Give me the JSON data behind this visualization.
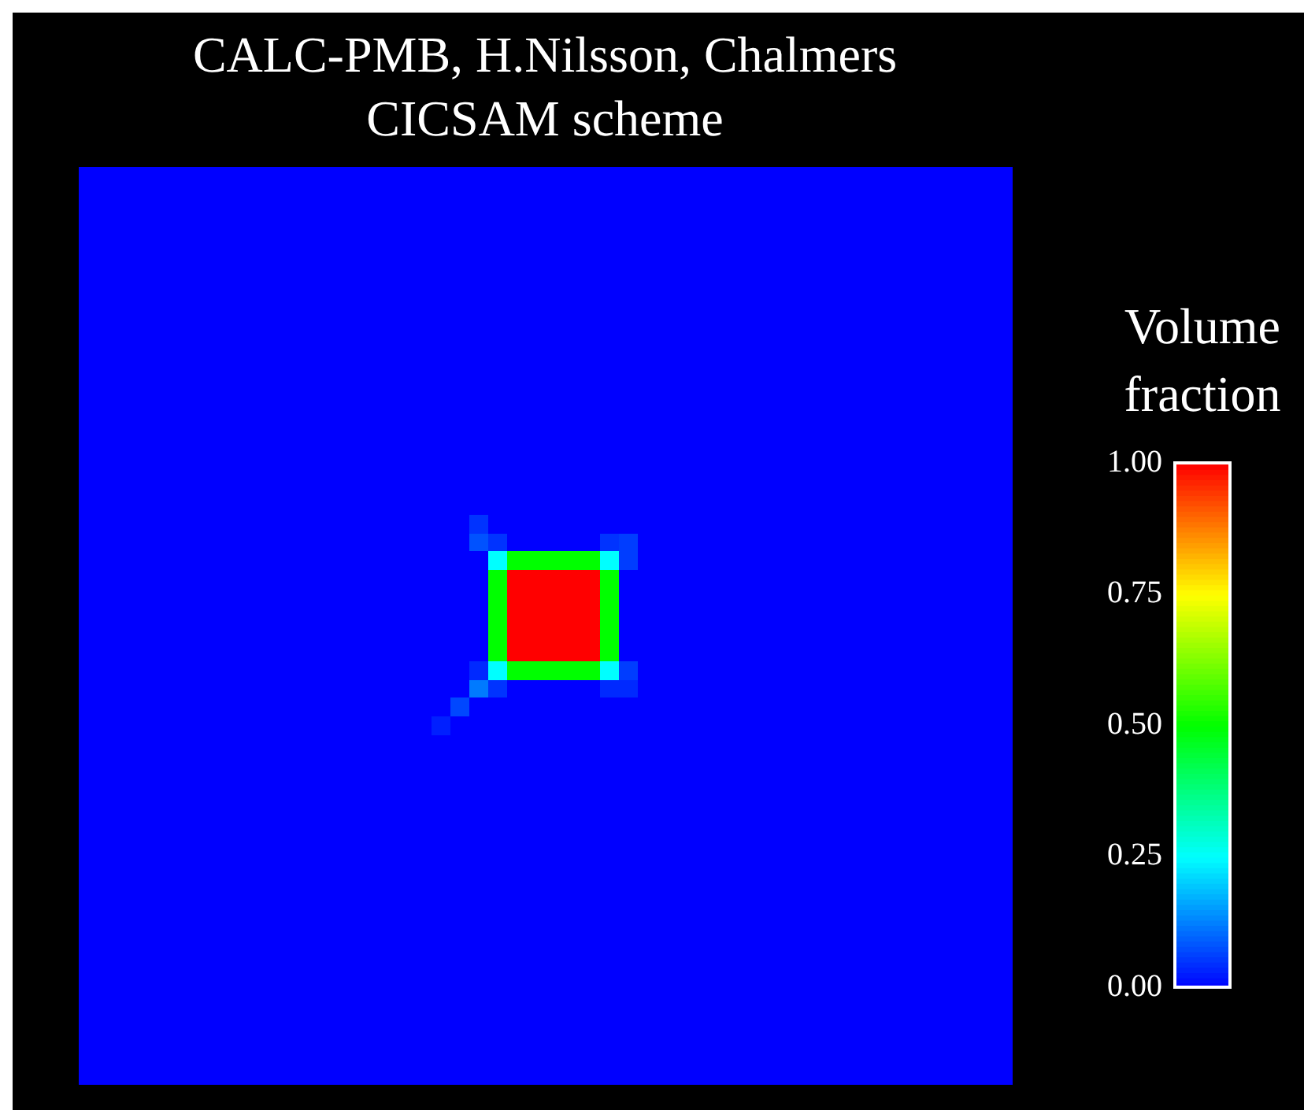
{
  "chart_data": {
    "type": "heatmap",
    "title": "CALC-PMB, H.Nilsson, Chalmers",
    "subtitle": "CICSAM scheme",
    "clabel": "Volume fraction",
    "tick_labels": false,
    "categories": [
      null,
      null,
      null,
      null,
      null,
      null,
      null,
      null,
      null,
      null,
      null,
      null,
      null,
      null,
      null,
      null,
      null,
      null,
      null,
      null,
      null,
      null,
      null,
      null,
      null,
      null,
      null,
      null,
      null,
      null,
      null,
      null,
      null,
      null,
      null,
      null,
      null,
      null,
      null,
      null,
      null,
      null,
      null,
      null,
      null,
      null,
      null,
      null,
      null,
      null
    ],
    "y_categories": [
      null,
      null,
      null,
      null,
      null,
      null,
      null,
      null,
      null,
      null,
      null,
      null,
      null,
      null,
      null,
      null,
      null,
      null,
      null,
      null,
      null,
      null,
      null,
      null,
      null,
      null,
      null,
      null,
      null,
      null,
      null,
      null,
      null,
      null,
      null,
      null,
      null,
      null,
      null,
      null,
      null,
      null,
      null,
      null,
      null,
      null,
      null,
      null,
      null,
      null
    ],
    "clim": [
      0,
      1
    ],
    "cticks": [
      {
        "value": 0,
        "label": "0.00"
      },
      {
        "value": 0.25,
        "label": "0.25"
      },
      {
        "value": 0.5,
        "label": "0.50"
      },
      {
        "value": 0.75,
        "label": "0.75"
      },
      {
        "value": 1,
        "label": "1.00"
      }
    ],
    "cells": [
      [
        0,
        0,
        0,
        0,
        0,
        0,
        0,
        0,
        0,
        0,
        0,
        0,
        0,
        0,
        0,
        0,
        0,
        0,
        0,
        0,
        0,
        0,
        0,
        0,
        0,
        0,
        0,
        0,
        0,
        0,
        0,
        0,
        0,
        0,
        0,
        0,
        0,
        0,
        0,
        0,
        0,
        0,
        0,
        0,
        0,
        0,
        0,
        0,
        0,
        0
      ],
      [
        0,
        0,
        0,
        0,
        0,
        0,
        0,
        0,
        0,
        0,
        0,
        0,
        0,
        0,
        0,
        0,
        0,
        0,
        0,
        0,
        0,
        0,
        0,
        0,
        0,
        0,
        0,
        0,
        0,
        0,
        0,
        0,
        0,
        0,
        0,
        0,
        0,
        0,
        0,
        0,
        0,
        0,
        0,
        0,
        0,
        0,
        0,
        0,
        0,
        0
      ],
      [
        0,
        0,
        0,
        0,
        0,
        0,
        0,
        0,
        0,
        0,
        0,
        0,
        0,
        0,
        0,
        0,
        0,
        0,
        0,
        0,
        0,
        0,
        0,
        0,
        0,
        0,
        0,
        0,
        0,
        0,
        0,
        0,
        0,
        0,
        0,
        0,
        0,
        0,
        0,
        0,
        0,
        0,
        0,
        0,
        0,
        0,
        0,
        0,
        0,
        0
      ],
      [
        0,
        0,
        0,
        0,
        0,
        0,
        0,
        0,
        0,
        0,
        0,
        0,
        0,
        0,
        0,
        0,
        0,
        0,
        0,
        0,
        0,
        0,
        0,
        0,
        0,
        0,
        0,
        0,
        0,
        0,
        0,
        0,
        0,
        0,
        0,
        0,
        0,
        0,
        0,
        0,
        0,
        0,
        0,
        0,
        0,
        0,
        0,
        0,
        0,
        0
      ],
      [
        0,
        0,
        0,
        0,
        0,
        0,
        0,
        0,
        0,
        0,
        0,
        0,
        0,
        0,
        0,
        0,
        0,
        0,
        0,
        0,
        0,
        0,
        0,
        0,
        0,
        0,
        0,
        0,
        0,
        0,
        0,
        0,
        0,
        0,
        0,
        0,
        0,
        0,
        0,
        0,
        0,
        0,
        0,
        0,
        0,
        0,
        0,
        0,
        0,
        0
      ],
      [
        0,
        0,
        0,
        0,
        0,
        0,
        0,
        0,
        0,
        0,
        0,
        0,
        0,
        0,
        0,
        0,
        0,
        0,
        0,
        0,
        0,
        0,
        0,
        0,
        0,
        0,
        0,
        0,
        0,
        0,
        0,
        0,
        0,
        0,
        0,
        0,
        0,
        0,
        0,
        0,
        0,
        0,
        0,
        0,
        0,
        0,
        0,
        0,
        0,
        0
      ],
      [
        0,
        0,
        0,
        0,
        0,
        0,
        0,
        0,
        0,
        0,
        0,
        0,
        0,
        0,
        0,
        0,
        0,
        0,
        0,
        0,
        0,
        0,
        0,
        0,
        0,
        0,
        0,
        0,
        0,
        0,
        0,
        0,
        0,
        0,
        0,
        0,
        0,
        0,
        0,
        0,
        0,
        0,
        0,
        0,
        0,
        0,
        0,
        0,
        0,
        0
      ],
      [
        0,
        0,
        0,
        0,
        0,
        0,
        0,
        0,
        0,
        0,
        0,
        0,
        0,
        0,
        0,
        0,
        0,
        0,
        0,
        0,
        0,
        0,
        0,
        0,
        0,
        0,
        0,
        0,
        0,
        0,
        0,
        0,
        0,
        0,
        0,
        0,
        0,
        0,
        0,
        0,
        0,
        0,
        0,
        0,
        0,
        0,
        0,
        0,
        0,
        0
      ],
      [
        0,
        0,
        0,
        0,
        0,
        0,
        0,
        0,
        0,
        0,
        0,
        0,
        0,
        0,
        0,
        0,
        0,
        0,
        0,
        0,
        0,
        0,
        0,
        0,
        0,
        0,
        0,
        0,
        0,
        0,
        0,
        0,
        0,
        0,
        0,
        0,
        0,
        0,
        0,
        0,
        0,
        0,
        0,
        0,
        0,
        0,
        0,
        0,
        0,
        0
      ],
      [
        0,
        0,
        0,
        0,
        0,
        0,
        0,
        0,
        0,
        0,
        0,
        0,
        0,
        0,
        0,
        0,
        0,
        0,
        0,
        0,
        0,
        0,
        0,
        0,
        0,
        0,
        0,
        0,
        0,
        0,
        0,
        0,
        0,
        0,
        0,
        0,
        0,
        0,
        0,
        0,
        0,
        0,
        0,
        0,
        0,
        0,
        0,
        0,
        0,
        0
      ],
      [
        0,
        0,
        0,
        0,
        0,
        0,
        0,
        0,
        0,
        0,
        0,
        0,
        0,
        0,
        0,
        0,
        0,
        0,
        0,
        0,
        0,
        0,
        0,
        0,
        0,
        0,
        0,
        0,
        0,
        0,
        0,
        0,
        0,
        0,
        0,
        0,
        0,
        0,
        0,
        0,
        0,
        0,
        0,
        0,
        0,
        0,
        0,
        0,
        0,
        0
      ],
      [
        0,
        0,
        0,
        0,
        0,
        0,
        0,
        0,
        0,
        0,
        0,
        0,
        0,
        0,
        0,
        0,
        0,
        0,
        0,
        0,
        0,
        0,
        0,
        0,
        0,
        0,
        0,
        0,
        0,
        0,
        0,
        0,
        0,
        0,
        0,
        0,
        0,
        0,
        0,
        0,
        0,
        0,
        0,
        0,
        0,
        0,
        0,
        0,
        0,
        0
      ],
      [
        0,
        0,
        0,
        0,
        0,
        0,
        0,
        0,
        0,
        0,
        0,
        0,
        0,
        0,
        0,
        0,
        0,
        0,
        0,
        0,
        0,
        0,
        0,
        0,
        0,
        0,
        0,
        0,
        0,
        0,
        0,
        0,
        0,
        0,
        0,
        0,
        0,
        0,
        0,
        0,
        0,
        0,
        0,
        0,
        0,
        0,
        0,
        0,
        0,
        0
      ],
      [
        0,
        0,
        0,
        0,
        0,
        0,
        0,
        0,
        0,
        0,
        0,
        0,
        0,
        0,
        0,
        0,
        0,
        0,
        0,
        0,
        0,
        0,
        0,
        0,
        0,
        0,
        0,
        0,
        0,
        0,
        0,
        0,
        0,
        0,
        0,
        0,
        0,
        0,
        0,
        0,
        0,
        0,
        0,
        0,
        0,
        0,
        0,
        0,
        0,
        0
      ],
      [
        0,
        0,
        0,
        0,
        0,
        0,
        0,
        0,
        0,
        0,
        0,
        0,
        0,
        0,
        0,
        0,
        0,
        0,
        0,
        0,
        0,
        0,
        0,
        0,
        0,
        0,
        0,
        0,
        0,
        0,
        0,
        0,
        0,
        0,
        0,
        0,
        0,
        0,
        0,
        0,
        0,
        0,
        0,
        0,
        0,
        0,
        0,
        0,
        0,
        0
      ],
      [
        0,
        0,
        0,
        0,
        0,
        0,
        0,
        0,
        0,
        0,
        0,
        0,
        0,
        0,
        0,
        0,
        0,
        0,
        0,
        0,
        0,
        0,
        0,
        0,
        0,
        0,
        0,
        0,
        0,
        0,
        0,
        0,
        0,
        0,
        0,
        0,
        0,
        0,
        0,
        0,
        0,
        0,
        0,
        0,
        0,
        0,
        0,
        0,
        0,
        0
      ],
      [
        0,
        0,
        0,
        0,
        0,
        0,
        0,
        0,
        0,
        0,
        0,
        0,
        0,
        0,
        0,
        0,
        0,
        0,
        0,
        0,
        0,
        0,
        0,
        0,
        0,
        0,
        0,
        0,
        0,
        0,
        0,
        0,
        0,
        0,
        0,
        0,
        0,
        0,
        0,
        0,
        0,
        0,
        0,
        0,
        0,
        0,
        0,
        0,
        0,
        0
      ],
      [
        0,
        0,
        0,
        0,
        0,
        0,
        0,
        0,
        0,
        0,
        0,
        0,
        0,
        0,
        0,
        0,
        0,
        0,
        0,
        0,
        0,
        0,
        0,
        0,
        0,
        0,
        0,
        0,
        0,
        0,
        0,
        0,
        0,
        0,
        0,
        0,
        0,
        0,
        0,
        0,
        0,
        0,
        0,
        0,
        0,
        0,
        0,
        0,
        0,
        0
      ],
      [
        0,
        0,
        0,
        0,
        0,
        0,
        0,
        0,
        0,
        0,
        0,
        0,
        0,
        0,
        0,
        0,
        0,
        0,
        0,
        0,
        0,
        0,
        0,
        0,
        0,
        0,
        0,
        0,
        0,
        0,
        0,
        0,
        0,
        0,
        0,
        0,
        0,
        0,
        0,
        0,
        0,
        0,
        0,
        0,
        0,
        0,
        0,
        0,
        0,
        0
      ],
      [
        0,
        0,
        0,
        0,
        0,
        0,
        0,
        0,
        0,
        0,
        0,
        0,
        0,
        0,
        0,
        0,
        0,
        0,
        0,
        0,
        0,
        0.05,
        0,
        0,
        0,
        0,
        0,
        0,
        0,
        0,
        0,
        0,
        0,
        0,
        0,
        0,
        0,
        0,
        0,
        0,
        0,
        0,
        0,
        0,
        0,
        0,
        0,
        0,
        0,
        0
      ],
      [
        0,
        0,
        0,
        0,
        0,
        0,
        0,
        0,
        0,
        0,
        0,
        0,
        0,
        0,
        0,
        0,
        0,
        0,
        0,
        0,
        0,
        0.08,
        0.05,
        0,
        0,
        0,
        0,
        0,
        0.05,
        0.06,
        0,
        0,
        0,
        0,
        0,
        0,
        0,
        0,
        0,
        0,
        0,
        0,
        0,
        0,
        0,
        0,
        0,
        0,
        0,
        0
      ],
      [
        0,
        0,
        0,
        0,
        0,
        0,
        0,
        0,
        0,
        0,
        0,
        0,
        0,
        0,
        0,
        0,
        0,
        0,
        0,
        0,
        0,
        0,
        0.25,
        0.5,
        0.5,
        0.5,
        0.5,
        0.5,
        0.25,
        0.06,
        0,
        0,
        0,
        0,
        0,
        0,
        0,
        0,
        0,
        0,
        0,
        0,
        0,
        0,
        0,
        0,
        0,
        0,
        0,
        0
      ],
      [
        0,
        0,
        0,
        0,
        0,
        0,
        0,
        0,
        0,
        0,
        0,
        0,
        0,
        0,
        0,
        0,
        0,
        0,
        0,
        0,
        0,
        0,
        0.5,
        1,
        1,
        1,
        1,
        1,
        0.5,
        0,
        0,
        0,
        0,
        0,
        0,
        0,
        0,
        0,
        0,
        0,
        0,
        0,
        0,
        0,
        0,
        0,
        0,
        0,
        0,
        0
      ],
      [
        0,
        0,
        0,
        0,
        0,
        0,
        0,
        0,
        0,
        0,
        0,
        0,
        0,
        0,
        0,
        0,
        0,
        0,
        0,
        0,
        0,
        0,
        0.5,
        1,
        1,
        1,
        1,
        1,
        0.5,
        0,
        0,
        0,
        0,
        0,
        0,
        0,
        0,
        0,
        0,
        0,
        0,
        0,
        0,
        0,
        0,
        0,
        0,
        0,
        0,
        0
      ],
      [
        0,
        0,
        0,
        0,
        0,
        0,
        0,
        0,
        0,
        0,
        0,
        0,
        0,
        0,
        0,
        0,
        0,
        0,
        0,
        0,
        0,
        0,
        0.5,
        1,
        1,
        1,
        1,
        1,
        0.5,
        0,
        0,
        0,
        0,
        0,
        0,
        0,
        0,
        0,
        0,
        0,
        0,
        0,
        0,
        0,
        0,
        0,
        0,
        0,
        0,
        0
      ],
      [
        0,
        0,
        0,
        0,
        0,
        0,
        0,
        0,
        0,
        0,
        0,
        0,
        0,
        0,
        0,
        0,
        0,
        0,
        0,
        0,
        0,
        0,
        0.5,
        1,
        1,
        1,
        1,
        1,
        0.5,
        0,
        0,
        0,
        0,
        0,
        0,
        0,
        0,
        0,
        0,
        0,
        0,
        0,
        0,
        0,
        0,
        0,
        0,
        0,
        0,
        0
      ],
      [
        0,
        0,
        0,
        0,
        0,
        0,
        0,
        0,
        0,
        0,
        0,
        0,
        0,
        0,
        0,
        0,
        0,
        0,
        0,
        0,
        0,
        0,
        0.5,
        1,
        1,
        1,
        1,
        1,
        0.5,
        0,
        0,
        0,
        0,
        0,
        0,
        0,
        0,
        0,
        0,
        0,
        0,
        0,
        0,
        0,
        0,
        0,
        0,
        0,
        0,
        0
      ],
      [
        0,
        0,
        0,
        0,
        0,
        0,
        0,
        0,
        0,
        0,
        0,
        0,
        0,
        0,
        0,
        0,
        0,
        0,
        0,
        0,
        0,
        0.04,
        0.25,
        0.5,
        0.5,
        0.5,
        0.5,
        0.5,
        0.25,
        0.06,
        0,
        0,
        0,
        0,
        0,
        0,
        0,
        0,
        0,
        0,
        0,
        0,
        0,
        0,
        0,
        0,
        0,
        0,
        0,
        0
      ],
      [
        0,
        0,
        0,
        0,
        0,
        0,
        0,
        0,
        0,
        0,
        0,
        0,
        0,
        0,
        0,
        0,
        0,
        0,
        0,
        0,
        0,
        0.12,
        0.05,
        0,
        0,
        0,
        0,
        0,
        0.04,
        0.04,
        0,
        0,
        0,
        0,
        0,
        0,
        0,
        0,
        0,
        0,
        0,
        0,
        0,
        0,
        0,
        0,
        0,
        0,
        0,
        0
      ],
      [
        0,
        0,
        0,
        0,
        0,
        0,
        0,
        0,
        0,
        0,
        0,
        0,
        0,
        0,
        0,
        0,
        0,
        0,
        0,
        0,
        0.07,
        0,
        0,
        0,
        0,
        0,
        0,
        0,
        0,
        0,
        0,
        0,
        0,
        0,
        0,
        0,
        0,
        0,
        0,
        0,
        0,
        0,
        0,
        0,
        0,
        0,
        0,
        0,
        0,
        0
      ],
      [
        0,
        0,
        0,
        0,
        0,
        0,
        0,
        0,
        0,
        0,
        0,
        0,
        0,
        0,
        0,
        0,
        0,
        0,
        0,
        0.03,
        0,
        0,
        0,
        0,
        0,
        0,
        0,
        0,
        0,
        0,
        0,
        0,
        0,
        0,
        0,
        0,
        0,
        0,
        0,
        0,
        0,
        0,
        0,
        0,
        0,
        0,
        0,
        0,
        0,
        0
      ],
      [
        0,
        0,
        0,
        0,
        0,
        0,
        0,
        0,
        0,
        0,
        0,
        0,
        0,
        0,
        0,
        0,
        0,
        0,
        0,
        0,
        0,
        0,
        0,
        0,
        0,
        0,
        0,
        0,
        0,
        0,
        0,
        0,
        0,
        0,
        0,
        0,
        0,
        0,
        0,
        0,
        0,
        0,
        0,
        0,
        0,
        0,
        0,
        0,
        0,
        0
      ],
      [
        0,
        0,
        0,
        0,
        0,
        0,
        0,
        0,
        0,
        0,
        0,
        0,
        0,
        0,
        0,
        0,
        0,
        0,
        0,
        0,
        0,
        0,
        0,
        0,
        0,
        0,
        0,
        0,
        0,
        0,
        0,
        0,
        0,
        0,
        0,
        0,
        0,
        0,
        0,
        0,
        0,
        0,
        0,
        0,
        0,
        0,
        0,
        0,
        0,
        0
      ],
      [
        0,
        0,
        0,
        0,
        0,
        0,
        0,
        0,
        0,
        0,
        0,
        0,
        0,
        0,
        0,
        0,
        0,
        0,
        0,
        0,
        0,
        0,
        0,
        0,
        0,
        0,
        0,
        0,
        0,
        0,
        0,
        0,
        0,
        0,
        0,
        0,
        0,
        0,
        0,
        0,
        0,
        0,
        0,
        0,
        0,
        0,
        0,
        0,
        0,
        0
      ],
      [
        0,
        0,
        0,
        0,
        0,
        0,
        0,
        0,
        0,
        0,
        0,
        0,
        0,
        0,
        0,
        0,
        0,
        0,
        0,
        0,
        0,
        0,
        0,
        0,
        0,
        0,
        0,
        0,
        0,
        0,
        0,
        0,
        0,
        0,
        0,
        0,
        0,
        0,
        0,
        0,
        0,
        0,
        0,
        0,
        0,
        0,
        0,
        0,
        0,
        0
      ],
      [
        0,
        0,
        0,
        0,
        0,
        0,
        0,
        0,
        0,
        0,
        0,
        0,
        0,
        0,
        0,
        0,
        0,
        0,
        0,
        0,
        0,
        0,
        0,
        0,
        0,
        0,
        0,
        0,
        0,
        0,
        0,
        0,
        0,
        0,
        0,
        0,
        0,
        0,
        0,
        0,
        0,
        0,
        0,
        0,
        0,
        0,
        0,
        0,
        0,
        0
      ],
      [
        0,
        0,
        0,
        0,
        0,
        0,
        0,
        0,
        0,
        0,
        0,
        0,
        0,
        0,
        0,
        0,
        0,
        0,
        0,
        0,
        0,
        0,
        0,
        0,
        0,
        0,
        0,
        0,
        0,
        0,
        0,
        0,
        0,
        0,
        0,
        0,
        0,
        0,
        0,
        0,
        0,
        0,
        0,
        0,
        0,
        0,
        0,
        0,
        0,
        0
      ],
      [
        0,
        0,
        0,
        0,
        0,
        0,
        0,
        0,
        0,
        0,
        0,
        0,
        0,
        0,
        0,
        0,
        0,
        0,
        0,
        0,
        0,
        0,
        0,
        0,
        0,
        0,
        0,
        0,
        0,
        0,
        0,
        0,
        0,
        0,
        0,
        0,
        0,
        0,
        0,
        0,
        0,
        0,
        0,
        0,
        0,
        0,
        0,
        0,
        0,
        0
      ],
      [
        0,
        0,
        0,
        0,
        0,
        0,
        0,
        0,
        0,
        0,
        0,
        0,
        0,
        0,
        0,
        0,
        0,
        0,
        0,
        0,
        0,
        0,
        0,
        0,
        0,
        0,
        0,
        0,
        0,
        0,
        0,
        0,
        0,
        0,
        0,
        0,
        0,
        0,
        0,
        0,
        0,
        0,
        0,
        0,
        0,
        0,
        0,
        0,
        0,
        0
      ],
      [
        0,
        0,
        0,
        0,
        0,
        0,
        0,
        0,
        0,
        0,
        0,
        0,
        0,
        0,
        0,
        0,
        0,
        0,
        0,
        0,
        0,
        0,
        0,
        0,
        0,
        0,
        0,
        0,
        0,
        0,
        0,
        0,
        0,
        0,
        0,
        0,
        0,
        0,
        0,
        0,
        0,
        0,
        0,
        0,
        0,
        0,
        0,
        0,
        0,
        0
      ],
      [
        0,
        0,
        0,
        0,
        0,
        0,
        0,
        0,
        0,
        0,
        0,
        0,
        0,
        0,
        0,
        0,
        0,
        0,
        0,
        0,
        0,
        0,
        0,
        0,
        0,
        0,
        0,
        0,
        0,
        0,
        0,
        0,
        0,
        0,
        0,
        0,
        0,
        0,
        0,
        0,
        0,
        0,
        0,
        0,
        0,
        0,
        0,
        0,
        0,
        0
      ],
      [
        0,
        0,
        0,
        0,
        0,
        0,
        0,
        0,
        0,
        0,
        0,
        0,
        0,
        0,
        0,
        0,
        0,
        0,
        0,
        0,
        0,
        0,
        0,
        0,
        0,
        0,
        0,
        0,
        0,
        0,
        0,
        0,
        0,
        0,
        0,
        0,
        0,
        0,
        0,
        0,
        0,
        0,
        0,
        0,
        0,
        0,
        0,
        0,
        0,
        0
      ],
      [
        0,
        0,
        0,
        0,
        0,
        0,
        0,
        0,
        0,
        0,
        0,
        0,
        0,
        0,
        0,
        0,
        0,
        0,
        0,
        0,
        0,
        0,
        0,
        0,
        0,
        0,
        0,
        0,
        0,
        0,
        0,
        0,
        0,
        0,
        0,
        0,
        0,
        0,
        0,
        0,
        0,
        0,
        0,
        0,
        0,
        0,
        0,
        0,
        0,
        0
      ],
      [
        0,
        0,
        0,
        0,
        0,
        0,
        0,
        0,
        0,
        0,
        0,
        0,
        0,
        0,
        0,
        0,
        0,
        0,
        0,
        0,
        0,
        0,
        0,
        0,
        0,
        0,
        0,
        0,
        0,
        0,
        0,
        0,
        0,
        0,
        0,
        0,
        0,
        0,
        0,
        0,
        0,
        0,
        0,
        0,
        0,
        0,
        0,
        0,
        0,
        0
      ],
      [
        0,
        0,
        0,
        0,
        0,
        0,
        0,
        0,
        0,
        0,
        0,
        0,
        0,
        0,
        0,
        0,
        0,
        0,
        0,
        0,
        0,
        0,
        0,
        0,
        0,
        0,
        0,
        0,
        0,
        0,
        0,
        0,
        0,
        0,
        0,
        0,
        0,
        0,
        0,
        0,
        0,
        0,
        0,
        0,
        0,
        0,
        0,
        0,
        0,
        0
      ],
      [
        0,
        0,
        0,
        0,
        0,
        0,
        0,
        0,
        0,
        0,
        0,
        0,
        0,
        0,
        0,
        0,
        0,
        0,
        0,
        0,
        0,
        0,
        0,
        0,
        0,
        0,
        0,
        0,
        0,
        0,
        0,
        0,
        0,
        0,
        0,
        0,
        0,
        0,
        0,
        0,
        0,
        0,
        0,
        0,
        0,
        0,
        0,
        0,
        0,
        0
      ],
      [
        0,
        0,
        0,
        0,
        0,
        0,
        0,
        0,
        0,
        0,
        0,
        0,
        0,
        0,
        0,
        0,
        0,
        0,
        0,
        0,
        0,
        0,
        0,
        0,
        0,
        0,
        0,
        0,
        0,
        0,
        0,
        0,
        0,
        0,
        0,
        0,
        0,
        0,
        0,
        0,
        0,
        0,
        0,
        0,
        0,
        0,
        0,
        0,
        0,
        0
      ],
      [
        0,
        0,
        0,
        0,
        0,
        0,
        0,
        0,
        0,
        0,
        0,
        0,
        0,
        0,
        0,
        0,
        0,
        0,
        0,
        0,
        0,
        0,
        0,
        0,
        0,
        0,
        0,
        0,
        0,
        0,
        0,
        0,
        0,
        0,
        0,
        0,
        0,
        0,
        0,
        0,
        0,
        0,
        0,
        0,
        0,
        0,
        0,
        0,
        0,
        0
      ],
      [
        0,
        0,
        0,
        0,
        0,
        0,
        0,
        0,
        0,
        0,
        0,
        0,
        0,
        0,
        0,
        0,
        0,
        0,
        0,
        0,
        0,
        0,
        0,
        0,
        0,
        0,
        0,
        0,
        0,
        0,
        0,
        0,
        0,
        0,
        0,
        0,
        0,
        0,
        0,
        0,
        0,
        0,
        0,
        0,
        0,
        0,
        0,
        0,
        0,
        0
      ],
      [
        0,
        0,
        0,
        0,
        0,
        0,
        0,
        0,
        0,
        0,
        0,
        0,
        0,
        0,
        0,
        0,
        0,
        0,
        0,
        0,
        0,
        0,
        0,
        0,
        0,
        0,
        0,
        0,
        0,
        0,
        0,
        0,
        0,
        0,
        0,
        0,
        0,
        0,
        0,
        0,
        0,
        0,
        0,
        0,
        0,
        0,
        0,
        0,
        0,
        0
      ]
    ]
  }
}
